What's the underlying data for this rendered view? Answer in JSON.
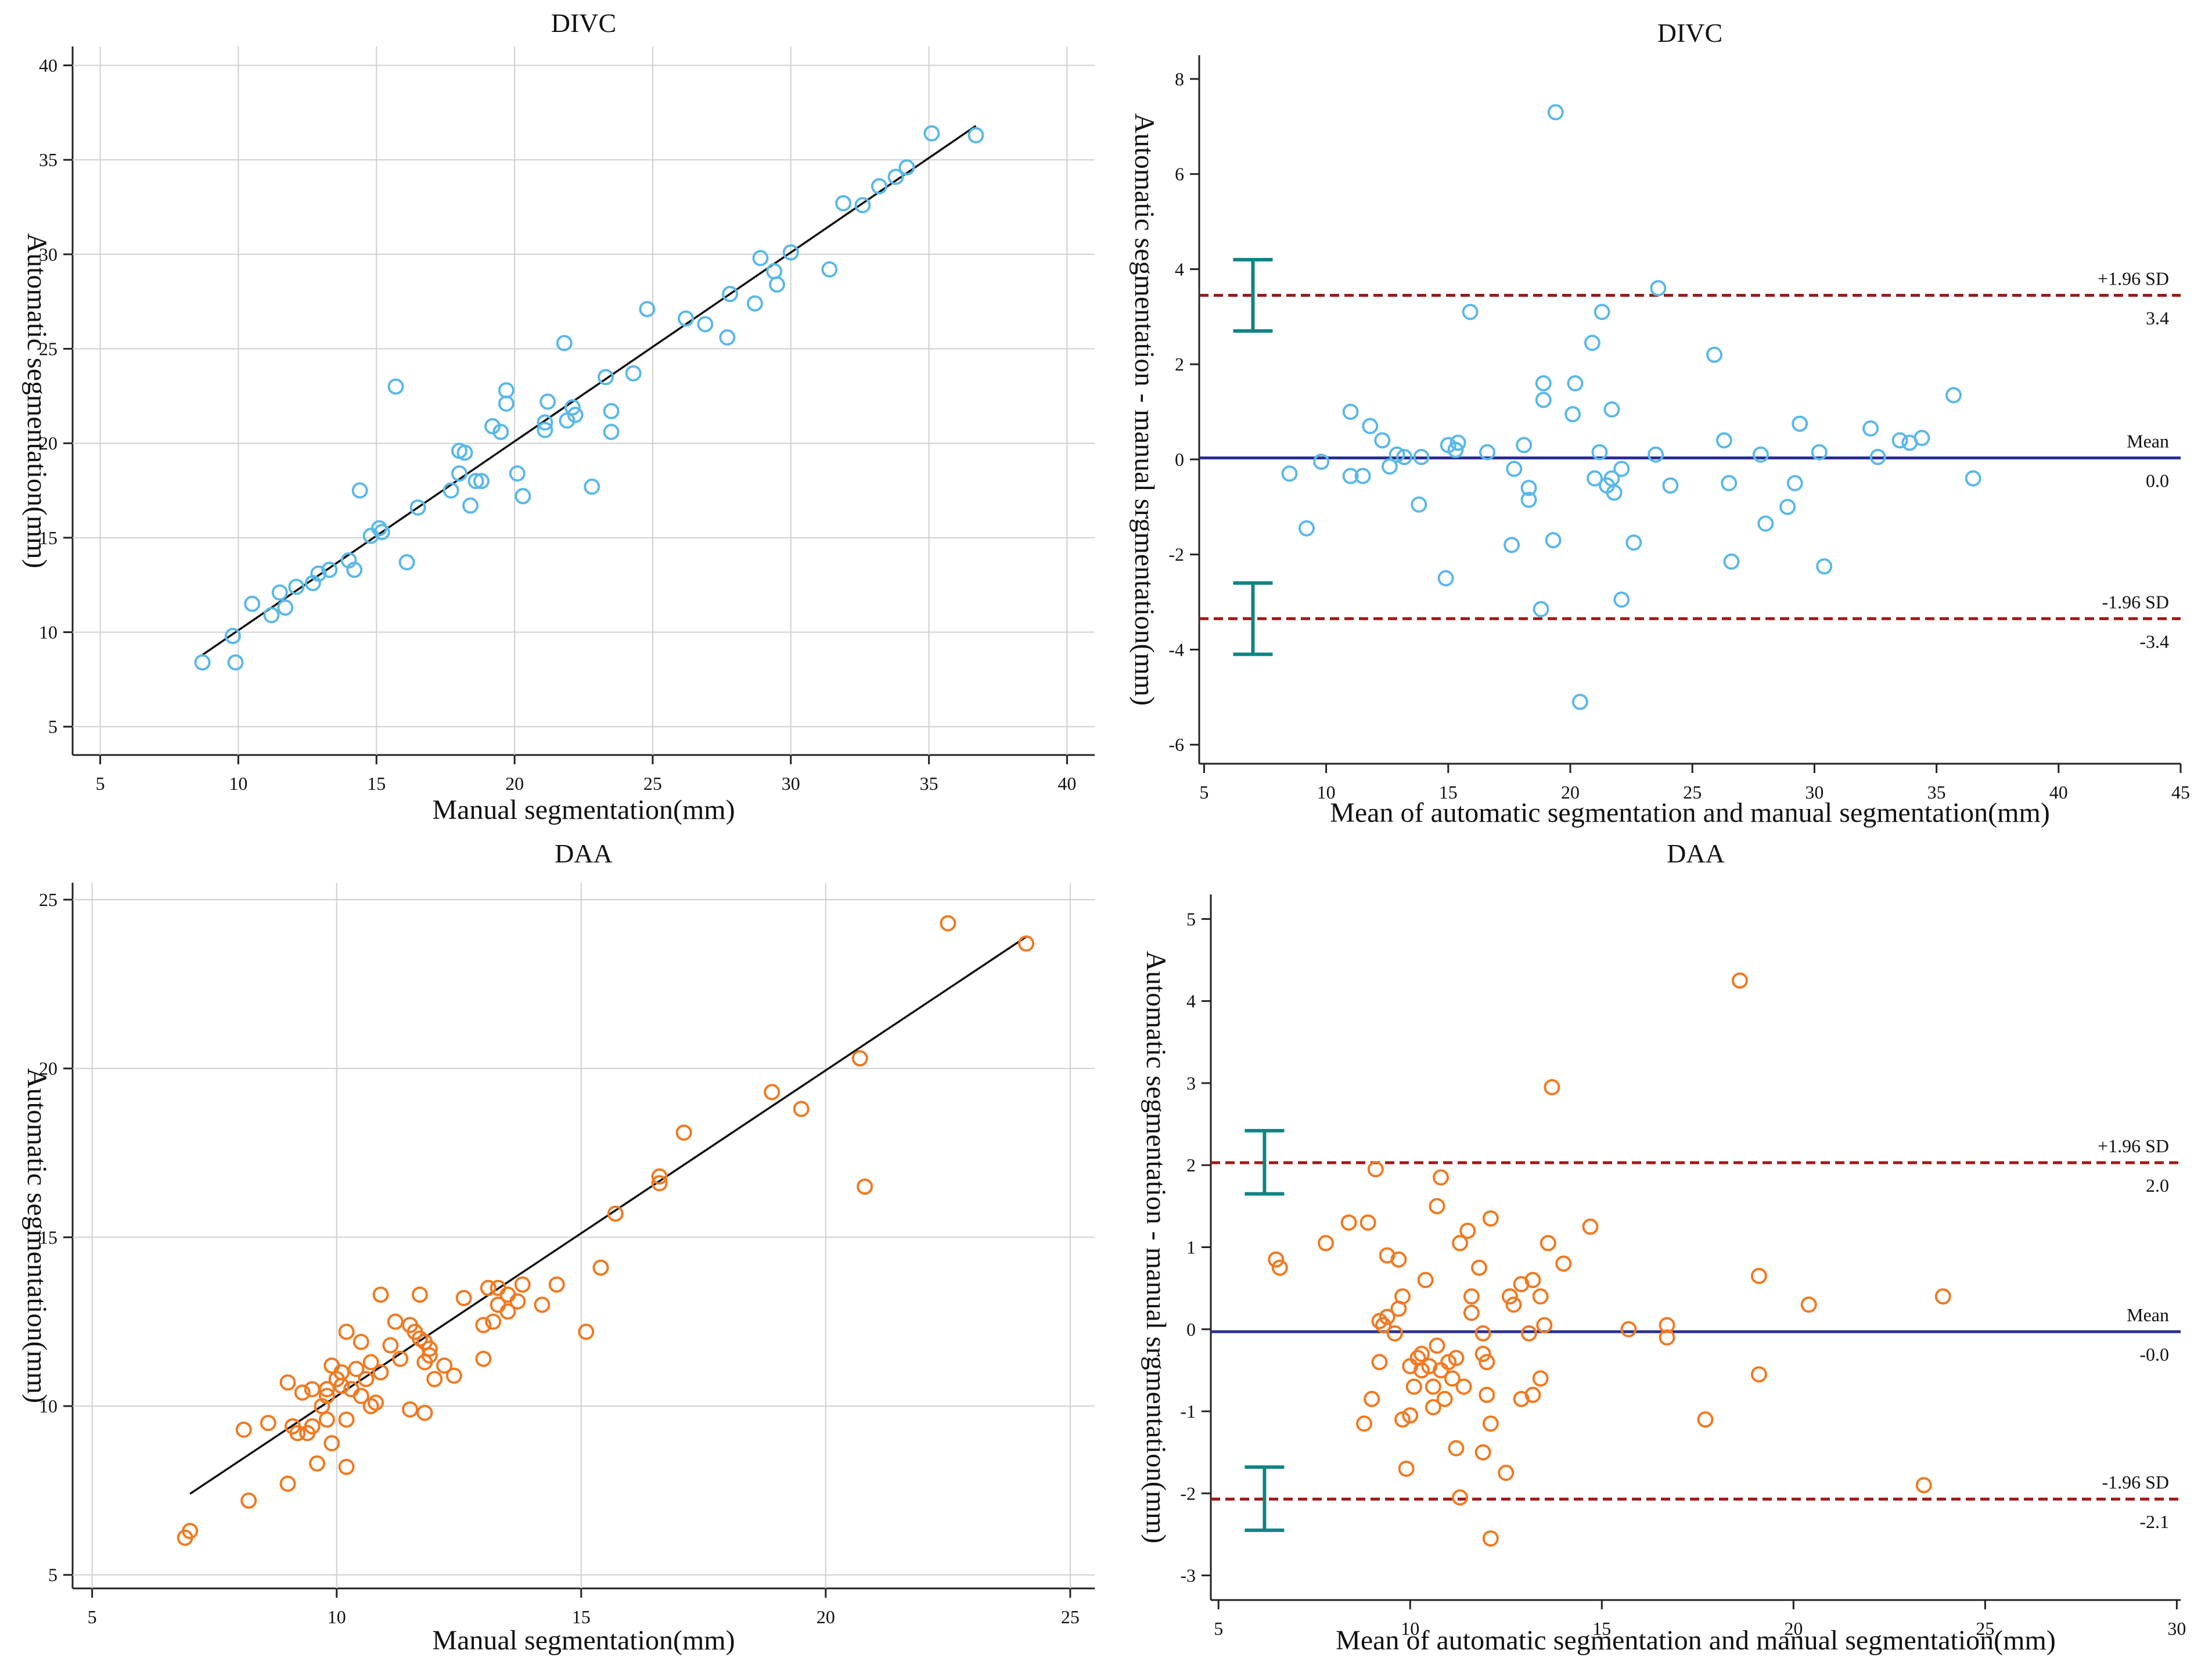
{
  "chart_data": [
    {
      "id": "p1",
      "type": "scatter",
      "title": "DIVC",
      "xlabel": "Manual segmentation(mm)",
      "ylabel": "Automatic segmentation(mm)",
      "xlim": [
        4,
        41
      ],
      "ylim": [
        3.5,
        41
      ],
      "xticks": [
        5,
        10,
        15,
        20,
        25,
        30,
        35,
        40
      ],
      "yticks": [
        5,
        10,
        15,
        20,
        25,
        30,
        35,
        40
      ],
      "grid": true,
      "point_color": "#5bb8e8",
      "regression_line": {
        "x1": 8.7,
        "y1": 8.8,
        "x2": 36.7,
        "y2": 36.8
      },
      "points": [
        [
          8.7,
          8.4
        ],
        [
          9.8,
          9.8
        ],
        [
          9.9,
          8.4
        ],
        [
          10.5,
          11.5
        ],
        [
          11.2,
          10.9
        ],
        [
          11.5,
          12.1
        ],
        [
          11.7,
          11.3
        ],
        [
          12.1,
          12.4
        ],
        [
          12.7,
          12.6
        ],
        [
          12.9,
          13.1
        ],
        [
          13.3,
          13.3
        ],
        [
          14.0,
          13.8
        ],
        [
          14.2,
          13.3
        ],
        [
          14.4,
          17.5
        ],
        [
          14.8,
          15.1
        ],
        [
          15.1,
          15.5
        ],
        [
          15.2,
          15.3
        ],
        [
          15.7,
          23.0
        ],
        [
          16.1,
          13.7
        ],
        [
          16.5,
          16.6
        ],
        [
          17.7,
          17.5
        ],
        [
          18.0,
          18.4
        ],
        [
          18.0,
          19.6
        ],
        [
          18.2,
          19.5
        ],
        [
          18.4,
          16.7
        ],
        [
          18.6,
          18.0
        ],
        [
          18.8,
          18.0
        ],
        [
          19.2,
          20.9
        ],
        [
          19.5,
          20.6
        ],
        [
          19.7,
          22.8
        ],
        [
          19.7,
          22.1
        ],
        [
          20.1,
          18.4
        ],
        [
          20.3,
          17.2
        ],
        [
          21.1,
          21.1
        ],
        [
          21.1,
          20.7
        ],
        [
          21.2,
          22.2
        ],
        [
          21.8,
          25.3
        ],
        [
          21.9,
          21.2
        ],
        [
          22.1,
          21.9
        ],
        [
          22.2,
          21.5
        ],
        [
          22.8,
          17.7
        ],
        [
          23.3,
          23.5
        ],
        [
          23.5,
          21.7
        ],
        [
          23.5,
          20.6
        ],
        [
          24.3,
          23.7
        ],
        [
          24.8,
          27.1
        ],
        [
          26.2,
          26.6
        ],
        [
          26.9,
          26.3
        ],
        [
          27.7,
          25.6
        ],
        [
          27.8,
          27.9
        ],
        [
          28.7,
          27.4
        ],
        [
          28.9,
          29.8
        ],
        [
          29.4,
          29.1
        ],
        [
          29.5,
          28.4
        ],
        [
          30.0,
          30.1
        ],
        [
          31.4,
          29.2
        ],
        [
          31.9,
          32.7
        ],
        [
          32.6,
          32.6
        ],
        [
          33.2,
          33.6
        ],
        [
          33.8,
          34.1
        ],
        [
          34.2,
          34.6
        ],
        [
          35.1,
          36.4
        ],
        [
          36.7,
          36.3
        ]
      ]
    },
    {
      "id": "p2",
      "type": "scatter",
      "subtype": "bland-altman",
      "title": "DIVC",
      "xlabel": "Mean of automatic segmentation and manual segmentation(mm)",
      "ylabel": "Automatic segmentation - manual srgmentation(mm)",
      "xlim": [
        4.8,
        45
      ],
      "ylim": [
        -6.4,
        8.5
      ],
      "xticks": [
        5,
        10,
        15,
        20,
        25,
        30,
        35,
        40,
        45
      ],
      "yticks": [
        -6,
        -4,
        -2,
        0,
        2,
        4,
        6,
        8
      ],
      "grid": false,
      "point_color": "#5bb8e8",
      "reference_lines": [
        {
          "name": "+1.96 SD",
          "value": 3.45,
          "label_top": "+1.96 SD",
          "label_bottom": "3.4",
          "color": "#a01818",
          "style": "dashed"
        },
        {
          "name": "Mean",
          "value": 0.03,
          "label_top": "Mean",
          "label_bottom": "0.0",
          "color": "#2b2f8f",
          "style": "solid"
        },
        {
          "name": "-1.96 SD",
          "value": -3.35,
          "label_top": "-1.96 SD",
          "label_bottom": "-3.4",
          "color": "#a01818",
          "style": "dashed"
        }
      ],
      "error_bars": [
        {
          "x": 7.0,
          "low": 2.7,
          "high": 4.2,
          "color": "#0e8484"
        },
        {
          "x": 7.0,
          "low": -4.1,
          "high": -2.6,
          "color": "#0e8484"
        }
      ],
      "points": [
        [
          8.5,
          -0.3
        ],
        [
          9.2,
          -1.45
        ],
        [
          9.8,
          -0.05
        ],
        [
          11.0,
          1.0
        ],
        [
          11.0,
          -0.35
        ],
        [
          11.5,
          -0.35
        ],
        [
          11.8,
          0.7
        ],
        [
          12.3,
          0.4
        ],
        [
          12.6,
          -0.15
        ],
        [
          12.9,
          0.1
        ],
        [
          13.2,
          0.05
        ],
        [
          13.8,
          -0.95
        ],
        [
          13.9,
          0.05
        ],
        [
          14.9,
          -2.5
        ],
        [
          15.0,
          0.3
        ],
        [
          15.3,
          0.2
        ],
        [
          15.4,
          0.35
        ],
        [
          15.9,
          3.1
        ],
        [
          16.6,
          0.15
        ],
        [
          17.6,
          -1.8
        ],
        [
          17.7,
          -0.2
        ],
        [
          18.1,
          0.3
        ],
        [
          18.3,
          -0.6
        ],
        [
          18.3,
          -0.85
        ],
        [
          18.8,
          -3.15
        ],
        [
          18.9,
          1.6
        ],
        [
          18.9,
          1.25
        ],
        [
          19.3,
          -1.7
        ],
        [
          19.4,
          7.3
        ],
        [
          20.1,
          0.95
        ],
        [
          20.2,
          1.6
        ],
        [
          20.4,
          -5.1
        ],
        [
          20.9,
          2.45
        ],
        [
          21.0,
          -0.4
        ],
        [
          21.2,
          0.15
        ],
        [
          21.3,
          3.1
        ],
        [
          21.5,
          -0.55
        ],
        [
          21.7,
          -0.4
        ],
        [
          21.8,
          -0.7
        ],
        [
          21.7,
          1.05
        ],
        [
          22.1,
          -2.95
        ],
        [
          22.1,
          -0.2
        ],
        [
          22.6,
          -1.75
        ],
        [
          23.5,
          0.1
        ],
        [
          23.6,
          3.6
        ],
        [
          24.1,
          -0.55
        ],
        [
          25.9,
          2.2
        ],
        [
          26.3,
          0.4
        ],
        [
          26.5,
          -0.5
        ],
        [
          26.6,
          -2.15
        ],
        [
          27.8,
          0.1
        ],
        [
          28.0,
          -1.35
        ],
        [
          28.9,
          -1.0
        ],
        [
          29.2,
          -0.5
        ],
        [
          29.4,
          0.75
        ],
        [
          30.2,
          0.15
        ],
        [
          30.4,
          -2.25
        ],
        [
          32.3,
          0.65
        ],
        [
          32.6,
          0.05
        ],
        [
          33.5,
          0.4
        ],
        [
          33.9,
          0.35
        ],
        [
          34.4,
          0.45
        ],
        [
          35.7,
          1.35
        ],
        [
          36.5,
          -0.4
        ]
      ]
    },
    {
      "id": "p3",
      "type": "scatter",
      "title": "DAA",
      "xlabel": "Manual segmentation(mm)",
      "ylabel": "Automatic segmentation(mm)",
      "xlim": [
        4.6,
        25.5
      ],
      "ylim": [
        4.6,
        25.5
      ],
      "xticks": [
        5,
        10,
        15,
        20,
        25
      ],
      "yticks": [
        5,
        10,
        15,
        20,
        25
      ],
      "grid": true,
      "point_color": "#ef7a22",
      "regression_line": {
        "x1": 7.0,
        "y1": 7.4,
        "x2": 24.1,
        "y2": 23.9
      },
      "points": [
        [
          6.9,
          6.1
        ],
        [
          7.0,
          6.3
        ],
        [
          8.1,
          9.3
        ],
        [
          8.2,
          7.2
        ],
        [
          8.6,
          9.5
        ],
        [
          9.0,
          7.7
        ],
        [
          9.0,
          10.7
        ],
        [
          9.1,
          9.4
        ],
        [
          9.2,
          9.2
        ],
        [
          9.3,
          10.4
        ],
        [
          9.4,
          9.2
        ],
        [
          9.5,
          10.5
        ],
        [
          9.5,
          9.4
        ],
        [
          9.6,
          8.3
        ],
        [
          9.7,
          10.0
        ],
        [
          9.8,
          10.3
        ],
        [
          9.8,
          10.5
        ],
        [
          9.8,
          9.6
        ],
        [
          9.9,
          8.9
        ],
        [
          9.9,
          11.2
        ],
        [
          10.0,
          10.8
        ],
        [
          10.1,
          11.0
        ],
        [
          10.1,
          10.6
        ],
        [
          10.2,
          9.6
        ],
        [
          10.2,
          8.2
        ],
        [
          10.2,
          12.2
        ],
        [
          10.3,
          10.5
        ],
        [
          10.4,
          11.1
        ],
        [
          10.5,
          11.9
        ],
        [
          10.5,
          10.3
        ],
        [
          10.6,
          10.8
        ],
        [
          10.7,
          10.0
        ],
        [
          10.7,
          11.3
        ],
        [
          10.8,
          10.1
        ],
        [
          10.9,
          13.3
        ],
        [
          10.9,
          11.0
        ],
        [
          11.1,
          11.8
        ],
        [
          11.2,
          12.5
        ],
        [
          11.3,
          11.4
        ],
        [
          11.5,
          9.9
        ],
        [
          11.5,
          12.4
        ],
        [
          11.6,
          12.2
        ],
        [
          11.7,
          13.3
        ],
        [
          11.7,
          12.0
        ],
        [
          11.8,
          11.3
        ],
        [
          11.8,
          9.8
        ],
        [
          11.8,
          11.9
        ],
        [
          11.9,
          11.7
        ],
        [
          11.9,
          11.5
        ],
        [
          12.0,
          10.8
        ],
        [
          12.2,
          11.2
        ],
        [
          12.4,
          10.9
        ],
        [
          12.6,
          13.2
        ],
        [
          13.0,
          12.4
        ],
        [
          13.0,
          11.4
        ],
        [
          13.1,
          13.5
        ],
        [
          13.2,
          12.5
        ],
        [
          13.3,
          13.5
        ],
        [
          13.3,
          13.0
        ],
        [
          13.5,
          13.3
        ],
        [
          13.5,
          12.8
        ],
        [
          13.7,
          13.1
        ],
        [
          13.8,
          13.6
        ],
        [
          14.2,
          13.0
        ],
        [
          14.5,
          13.6
        ],
        [
          15.1,
          12.2
        ],
        [
          15.4,
          14.1
        ],
        [
          15.7,
          15.7
        ],
        [
          16.6,
          16.6
        ],
        [
          16.6,
          16.8
        ],
        [
          17.1,
          18.1
        ],
        [
          18.9,
          19.3
        ],
        [
          19.5,
          18.8
        ],
        [
          20.7,
          20.3
        ],
        [
          20.8,
          16.5
        ],
        [
          22.5,
          24.3
        ],
        [
          24.1,
          23.7
        ]
      ]
    },
    {
      "id": "p4",
      "type": "scatter",
      "subtype": "bland-altman",
      "title": "DAA",
      "xlabel": "Mean of automatic segmentation and manual segmentation(mm)",
      "ylabel": "Automatic segmentation - manual srgmentation(mm)",
      "xlim": [
        4.8,
        30.1
      ],
      "ylim": [
        -3.3,
        5.3
      ],
      "xticks": [
        5,
        10,
        15,
        20,
        25,
        30
      ],
      "yticks": [
        -3,
        -2,
        -1,
        0,
        1,
        2,
        3,
        4,
        5
      ],
      "grid": false,
      "point_color": "#ef7a22",
      "reference_lines": [
        {
          "name": "+1.96 SD",
          "value": 2.03,
          "label_top": "+1.96 SD",
          "label_bottom": "2.0",
          "color": "#a01818",
          "style": "dashed"
        },
        {
          "name": "Mean",
          "value": -0.03,
          "label_top": "Mean",
          "label_bottom": "-0.0",
          "color": "#2b2f8f",
          "style": "solid"
        },
        {
          "name": "-1.96 SD",
          "value": -2.07,
          "label_top": "-1.96 SD",
          "label_bottom": "-2.1",
          "color": "#a01818",
          "style": "dashed"
        }
      ],
      "error_bars": [
        {
          "x": 6.2,
          "low": 1.65,
          "high": 2.42,
          "color": "#0e8484"
        },
        {
          "x": 6.2,
          "low": -2.45,
          "high": -1.68,
          "color": "#0e8484"
        }
      ],
      "points": [
        [
          6.5,
          0.85
        ],
        [
          6.6,
          0.75
        ],
        [
          7.8,
          1.05
        ],
        [
          8.4,
          1.3
        ],
        [
          8.8,
          -1.15
        ],
        [
          8.9,
          1.3
        ],
        [
          9.0,
          -0.85
        ],
        [
          9.1,
          1.95
        ],
        [
          9.2,
          -0.4
        ],
        [
          9.2,
          0.1
        ],
        [
          9.3,
          0.05
        ],
        [
          9.4,
          0.9
        ],
        [
          9.4,
          0.15
        ],
        [
          9.6,
          -0.05
        ],
        [
          9.7,
          0.85
        ],
        [
          9.7,
          0.25
        ],
        [
          9.8,
          -1.1
        ],
        [
          9.8,
          0.4
        ],
        [
          9.9,
          -1.7
        ],
        [
          10.0,
          -1.05
        ],
        [
          10.0,
          -0.45
        ],
        [
          10.1,
          -0.7
        ],
        [
          10.2,
          -0.35
        ],
        [
          10.3,
          -0.5
        ],
        [
          10.3,
          -0.3
        ],
        [
          10.4,
          0.6
        ],
        [
          10.5,
          -0.45
        ],
        [
          10.6,
          -0.95
        ],
        [
          10.6,
          -0.7
        ],
        [
          10.7,
          1.5
        ],
        [
          10.7,
          -0.2
        ],
        [
          10.8,
          -0.5
        ],
        [
          10.8,
          1.85
        ],
        [
          10.9,
          -0.85
        ],
        [
          11.0,
          -0.4
        ],
        [
          11.1,
          -0.6
        ],
        [
          11.2,
          -1.45
        ],
        [
          11.2,
          -0.35
        ],
        [
          11.3,
          -2.05
        ],
        [
          11.3,
          1.05
        ],
        [
          11.4,
          -0.7
        ],
        [
          11.5,
          1.2
        ],
        [
          11.6,
          0.4
        ],
        [
          11.6,
          0.2
        ],
        [
          11.8,
          0.75
        ],
        [
          11.9,
          -1.5
        ],
        [
          11.9,
          -0.05
        ],
        [
          11.9,
          -0.3
        ],
        [
          12.0,
          -0.8
        ],
        [
          12.0,
          -0.4
        ],
        [
          12.1,
          -1.15
        ],
        [
          12.1,
          1.35
        ],
        [
          12.1,
          -2.55
        ],
        [
          12.5,
          -1.75
        ],
        [
          12.6,
          0.4
        ],
        [
          12.7,
          0.3
        ],
        [
          12.9,
          0.55
        ],
        [
          12.9,
          -0.85
        ],
        [
          13.1,
          -0.05
        ],
        [
          13.2,
          0.6
        ],
        [
          13.2,
          -0.8
        ],
        [
          13.4,
          0.4
        ],
        [
          13.4,
          -0.6
        ],
        [
          13.5,
          0.05
        ],
        [
          13.6,
          1.05
        ],
        [
          13.7,
          2.95
        ],
        [
          14.0,
          0.8
        ],
        [
          14.7,
          1.25
        ],
        [
          15.7,
          0.0
        ],
        [
          16.7,
          0.05
        ],
        [
          16.7,
          -0.1
        ],
        [
          17.7,
          -1.1
        ],
        [
          18.6,
          4.25
        ],
        [
          19.1,
          0.65
        ],
        [
          19.1,
          -0.55
        ],
        [
          20.4,
          0.3
        ],
        [
          23.4,
          -1.9
        ],
        [
          23.9,
          0.4
        ]
      ]
    }
  ]
}
